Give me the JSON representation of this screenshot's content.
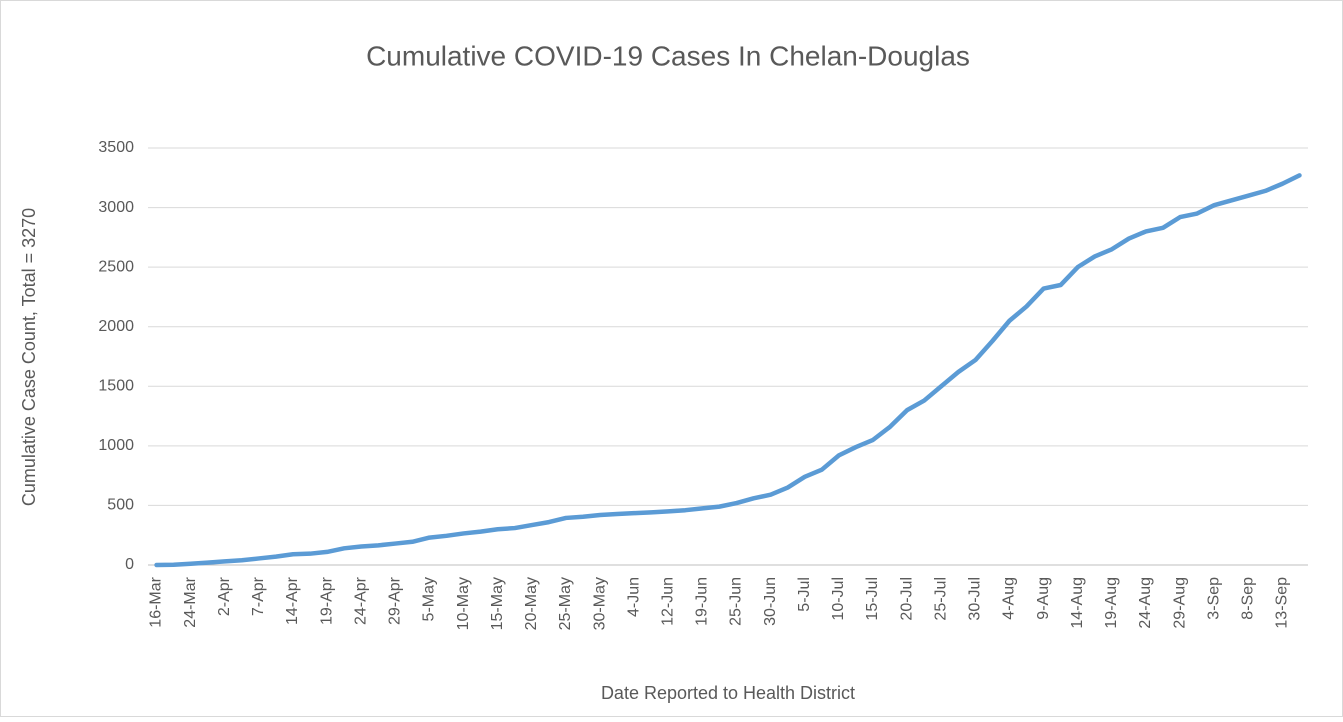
{
  "chart_data": {
    "type": "line",
    "title": "Cumulative COVID-19 Cases In Chelan-Douglas",
    "x_label": "Date Reported to Health District",
    "y_label": "Cumulative Case Count, Total = 3270",
    "categories": [
      "16-Mar",
      null,
      "24-Mar",
      null,
      "2-Apr",
      null,
      "7-Apr",
      null,
      "14-Apr",
      null,
      "19-Apr",
      null,
      "24-Apr",
      null,
      "29-Apr",
      null,
      "5-May",
      null,
      "10-May",
      null,
      "15-May",
      null,
      "20-May",
      null,
      "25-May",
      null,
      "30-May",
      null,
      "4-Jun",
      null,
      "12-Jun",
      null,
      "19-Jun",
      null,
      "25-Jun",
      null,
      "30-Jun",
      null,
      "5-Jul",
      null,
      "10-Jul",
      null,
      "15-Jul",
      null,
      "20-Jul",
      null,
      "25-Jul",
      null,
      "30-Jul",
      null,
      "4-Aug",
      null,
      "9-Aug",
      null,
      "14-Aug",
      null,
      "19-Aug",
      null,
      "24-Aug",
      null,
      "29-Aug",
      null,
      "3-Sep",
      null,
      "8-Sep",
      null,
      "13-Sep",
      null
    ],
    "series": [
      {
        "name": "Cumulative Case Count",
        "color": "#5b9bd5",
        "values": [
          0,
          2,
          10,
          20,
          30,
          40,
          55,
          70,
          90,
          95,
          110,
          140,
          155,
          165,
          180,
          195,
          230,
          245,
          265,
          280,
          300,
          310,
          335,
          360,
          395,
          405,
          420,
          428,
          435,
          442,
          450,
          460,
          475,
          490,
          520,
          560,
          590,
          650,
          740,
          800,
          920,
          990,
          1050,
          1160,
          1300,
          1380,
          1500,
          1620,
          1720,
          1880,
          2050,
          2170,
          2320,
          2350,
          2500,
          2590,
          2650,
          2740,
          2800,
          2830,
          2920,
          2950,
          3020,
          3060,
          3100,
          3140,
          3200,
          3270
        ]
      }
    ],
    "ylim": [
      0,
      3500
    ],
    "yticks": [
      0,
      500,
      1000,
      1500,
      2000,
      2500,
      3000,
      3500
    ],
    "grid": true
  }
}
